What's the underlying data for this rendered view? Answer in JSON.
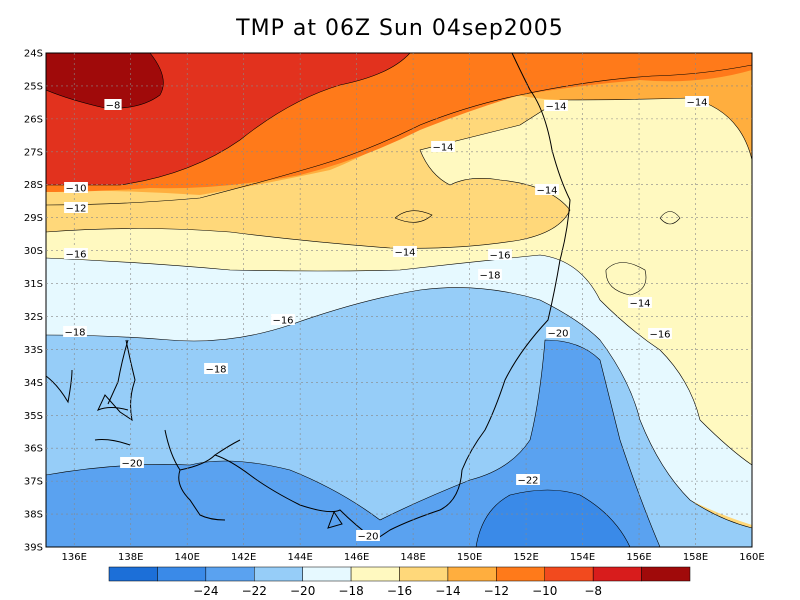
{
  "title": "TMP at 06Z Sun 04sep2005",
  "y_ticks": [
    "24S",
    "25S",
    "26S",
    "27S",
    "28S",
    "29S",
    "30S",
    "31S",
    "32S",
    "33S",
    "34S",
    "35S",
    "36S",
    "37S",
    "38S",
    "39S"
  ],
  "x_ticks": [
    "136E",
    "138E",
    "140E",
    "142E",
    "144E",
    "146E",
    "148E",
    "150E",
    "152E",
    "154E",
    "156E",
    "158E",
    "160E"
  ],
  "contour_labels": [
    "-8",
    "-10",
    "-12",
    "-14",
    "-14",
    "-14",
    "-14",
    "-14",
    "-14",
    "-16",
    "-16",
    "-16",
    "-16",
    "-18",
    "-18",
    "-18",
    "-20",
    "-20",
    "-20",
    "-22"
  ],
  "colorbar": {
    "colors": [
      "#1c6fd8",
      "#3a8ae8",
      "#5aa2f0",
      "#96cdf8",
      "#e6f9ff",
      "#fff9c0",
      "#ffd87a",
      "#ffae3e",
      "#ff7a1a",
      "#f24a1e",
      "#d81c1c",
      "#a00a0a"
    ],
    "labels": [
      "-24",
      "-22",
      "-20",
      "-18",
      "-16",
      "-14",
      "-12",
      "-10",
      "-8"
    ]
  }
}
